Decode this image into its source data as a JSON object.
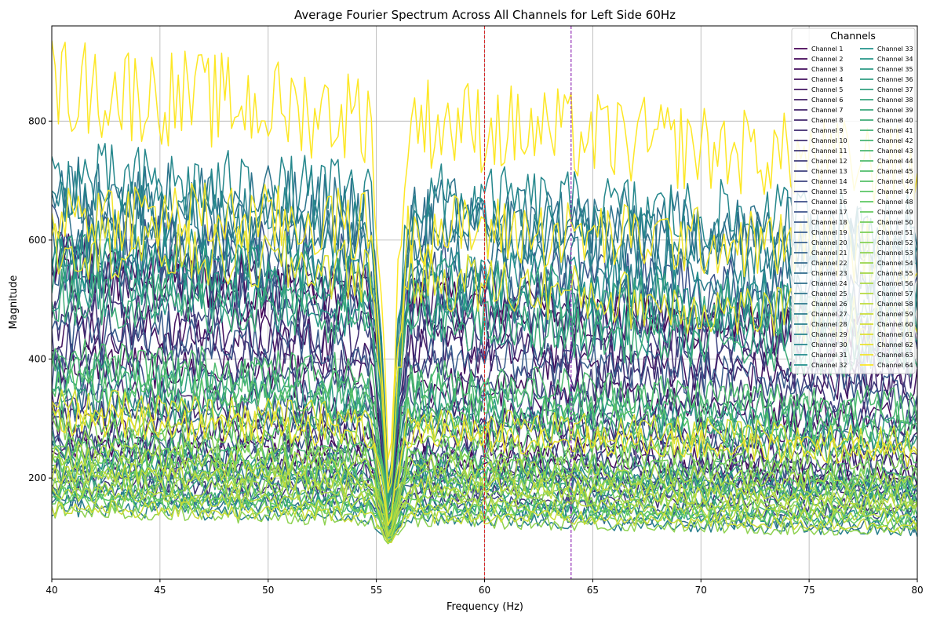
{
  "chart_data": {
    "type": "line",
    "title": "Average Fourier Spectrum Across All Channels for Left Side 60Hz",
    "xlabel": "Frequency (Hz)",
    "ylabel": "Magnitude",
    "xlim": [
      40,
      80
    ],
    "ylim": [
      30,
      960
    ],
    "xticks": [
      40,
      45,
      50,
      55,
      60,
      65,
      70,
      75,
      80
    ],
    "xtick_labels": [
      "40",
      "45",
      "50",
      "55",
      "60",
      "65",
      "70",
      "75",
      "80"
    ],
    "yticks": [
      200,
      400,
      600,
      800
    ],
    "ytick_labels": [
      "200",
      "400",
      "600",
      "800"
    ],
    "grid": true,
    "colormap": "viridis",
    "notch_frequency": 55.6,
    "notch_minimum": 80,
    "reference_lines": [
      {
        "x": 60,
        "color": "#d62728",
        "style": "dashed"
      },
      {
        "x": 64,
        "color": "#8a1fb0",
        "style": "dashed"
      }
    ],
    "legend": {
      "title": "Channels",
      "location": "upper right",
      "columns": 2
    },
    "series": [
      {
        "name": "Channel 1",
        "start": 550,
        "end": 430
      },
      {
        "name": "Channel 2",
        "start": 260,
        "end": 200
      },
      {
        "name": "Channel 3",
        "start": 400,
        "end": 300
      },
      {
        "name": "Channel 4",
        "start": 460,
        "end": 360
      },
      {
        "name": "Channel 5",
        "start": 290,
        "end": 220
      },
      {
        "name": "Channel 6",
        "start": 560,
        "end": 420
      },
      {
        "name": "Channel 7",
        "start": 340,
        "end": 260
      },
      {
        "name": "Channel 8",
        "start": 230,
        "end": 180
      },
      {
        "name": "Channel 9",
        "start": 480,
        "end": 370
      },
      {
        "name": "Channel 10",
        "start": 195,
        "end": 150
      },
      {
        "name": "Channel 11",
        "start": 310,
        "end": 240
      },
      {
        "name": "Channel 12",
        "start": 420,
        "end": 330
      },
      {
        "name": "Channel 13",
        "start": 250,
        "end": 190
      },
      {
        "name": "Channel 14",
        "start": 520,
        "end": 410
      },
      {
        "name": "Channel 15",
        "start": 180,
        "end": 140
      },
      {
        "name": "Channel 16",
        "start": 380,
        "end": 290
      },
      {
        "name": "Channel 17",
        "start": 600,
        "end": 500
      },
      {
        "name": "Channel 18",
        "start": 270,
        "end": 210
      },
      {
        "name": "Channel 19",
        "start": 450,
        "end": 350
      },
      {
        "name": "Channel 20",
        "start": 210,
        "end": 170
      },
      {
        "name": "Channel 21",
        "start": 560,
        "end": 450
      },
      {
        "name": "Channel 22",
        "start": 330,
        "end": 250
      },
      {
        "name": "Channel 23",
        "start": 165,
        "end": 120
      },
      {
        "name": "Channel 24",
        "start": 640,
        "end": 580
      },
      {
        "name": "Channel 25",
        "start": 680,
        "end": 600
      },
      {
        "name": "Channel 26",
        "start": 220,
        "end": 180
      },
      {
        "name": "Channel 27",
        "start": 600,
        "end": 520
      },
      {
        "name": "Channel 28",
        "start": 150,
        "end": 110
      },
      {
        "name": "Channel 29",
        "start": 660,
        "end": 560
      },
      {
        "name": "Channel 30",
        "start": 700,
        "end": 620
      },
      {
        "name": "Channel 31",
        "start": 240,
        "end": 180
      },
      {
        "name": "Channel 32",
        "start": 580,
        "end": 480
      },
      {
        "name": "Channel 33",
        "start": 170,
        "end": 130
      },
      {
        "name": "Channel 34",
        "start": 520,
        "end": 420
      },
      {
        "name": "Channel 35",
        "start": 370,
        "end": 280
      },
      {
        "name": "Channel 36",
        "start": 200,
        "end": 160
      },
      {
        "name": "Channel 37",
        "start": 560,
        "end": 470
      },
      {
        "name": "Channel 38",
        "start": 330,
        "end": 260
      },
      {
        "name": "Channel 39",
        "start": 180,
        "end": 140
      },
      {
        "name": "Channel 40",
        "start": 510,
        "end": 400
      },
      {
        "name": "Channel 41",
        "start": 260,
        "end": 200
      },
      {
        "name": "Channel 42",
        "start": 380,
        "end": 300
      },
      {
        "name": "Channel 43",
        "start": 220,
        "end": 170
      },
      {
        "name": "Channel 44",
        "start": 400,
        "end": 320
      },
      {
        "name": "Channel 45",
        "start": 300,
        "end": 240
      },
      {
        "name": "Channel 46",
        "start": 350,
        "end": 270
      },
      {
        "name": "Channel 47",
        "start": 170,
        "end": 130
      },
      {
        "name": "Channel 48",
        "start": 230,
        "end": 180
      },
      {
        "name": "Channel 49",
        "start": 160,
        "end": 125
      },
      {
        "name": "Channel 50",
        "start": 250,
        "end": 200
      },
      {
        "name": "Channel 51",
        "start": 200,
        "end": 150
      },
      {
        "name": "Channel 52",
        "start": 280,
        "end": 220
      },
      {
        "name": "Channel 53",
        "start": 145,
        "end": 110
      },
      {
        "name": "Channel 54",
        "start": 220,
        "end": 170
      },
      {
        "name": "Channel 55",
        "start": 190,
        "end": 150
      },
      {
        "name": "Channel 56",
        "start": 240,
        "end": 190
      },
      {
        "name": "Channel 57",
        "start": 175,
        "end": 135
      },
      {
        "name": "Channel 58",
        "start": 210,
        "end": 160
      },
      {
        "name": "Channel 59",
        "start": 150,
        "end": 120
      },
      {
        "name": "Channel 60",
        "start": 320,
        "end": 260
      },
      {
        "name": "Channel 61",
        "start": 600,
        "end": 450
      },
      {
        "name": "Channel 62",
        "start": 300,
        "end": 240
      },
      {
        "name": "Channel 63",
        "start": 650,
        "end": 580
      },
      {
        "name": "Channel 64",
        "start": 860,
        "end": 720
      }
    ]
  }
}
